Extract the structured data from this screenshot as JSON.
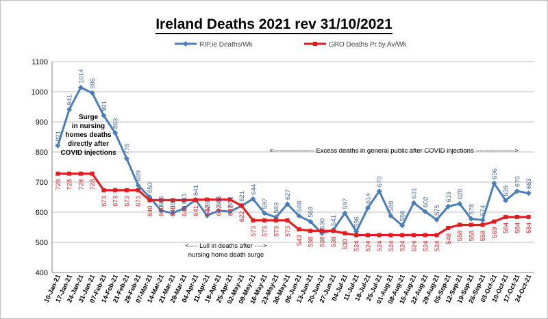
{
  "chart_data": {
    "type": "line",
    "title": "Ireland Deaths 2021 rev 31/10/2021",
    "xlabel": "",
    "ylabel": "",
    "ylim": [
      400,
      1100
    ],
    "yticks": [
      400,
      500,
      600,
      700,
      800,
      900,
      1000,
      1100
    ],
    "grid": "horizontal",
    "legend_position": "top",
    "categories": [
      "10-Jan-21",
      "17-Jan-21",
      "24-Jan-21",
      "31-Jan-21",
      "07-Feb-21",
      "14-Feb-21",
      "21-Feb-21",
      "28-Feb-21",
      "07-Mar-21",
      "14-Mar-21",
      "21-Mar-21",
      "28-Mar-21",
      "04-Apr-21",
      "11-Apr-21",
      "18-Apr-21",
      "25-Apr-21",
      "02-May-21",
      "09-May-21",
      "16-May-21",
      "23-May-21",
      "30-May-21",
      "06-Jun-21",
      "13-Jun-21",
      "20-Jun-21",
      "27-Jun-21",
      "04-Jul-21",
      "11-Jul-21",
      "18-Jul-21",
      "25-Jul-21",
      "01-Aug-21",
      "08-Aug-21",
      "15-Aug-21",
      "22-Aug-21",
      "29-Aug-21",
      "05-Sep-21",
      "12-Sep-21",
      "19-Sep-21",
      "26-Sep-21",
      "03-Oct-21",
      "10-Oct-21",
      "17-Oct-21",
      "24-Oct-21"
    ],
    "series": [
      {
        "name": "RIP.ie Deaths/Wk",
        "color": "#4a7ebb",
        "values": [
          821,
          941,
          1014,
          996,
          921,
          863,
          778,
          689,
          650,
          605,
          597,
          613,
          641,
          589,
          605,
          602,
          621,
          644,
          597,
          583,
          627,
          588,
          569,
          530,
          541,
          597,
          536,
          614,
          670,
          588,
          556,
          631,
          602,
          575,
          619,
          628,
          578,
          574,
          696,
          639,
          670,
          663
        ]
      },
      {
        "name": "GRO Deaths Pr.5y.Av/Wk",
        "color": "#e41a1c",
        "values": [
          728,
          728,
          728,
          728,
          673,
          673,
          673,
          673,
          640,
          640,
          640,
          640,
          641,
          642,
          642,
          642,
          622,
          573,
          573,
          573,
          573,
          543,
          538,
          538,
          538,
          530,
          524,
          524,
          524,
          524,
          524,
          524,
          524,
          524,
          548,
          558,
          558,
          558,
          569,
          584,
          584,
          584
        ]
      }
    ],
    "annotations": [
      {
        "id": "surge",
        "lines": [
          "Surge",
          "in nursing",
          "homes deaths",
          "directly after",
          "COVID injections"
        ]
      },
      {
        "id": "excess",
        "lines": [
          "<------------------- Excess deaths in general public after COVID injections ------------------>"
        ]
      },
      {
        "id": "lull",
        "lines": [
          "<---- Lull in deaths after ---->",
          "nursing home death surge"
        ]
      }
    ]
  }
}
